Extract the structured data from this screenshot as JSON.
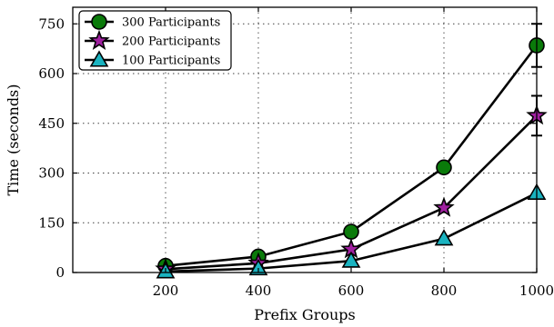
{
  "chart_data": {
    "type": "line",
    "title": "",
    "xlabel": "Prefix Groups",
    "ylabel": "Time (seconds)",
    "x": [
      200,
      400,
      600,
      800,
      1000
    ],
    "xlim": [
      0,
      1000
    ],
    "ylim": [
      0,
      800
    ],
    "xticks": [
      200,
      400,
      600,
      800,
      1000
    ],
    "yticks": [
      0,
      150,
      300,
      450,
      600,
      750
    ],
    "grid": true,
    "legend_position": "top-left",
    "series": [
      {
        "name": "300 Participants",
        "marker": "circle",
        "color": "#0a7a0a",
        "values": [
          20,
          48,
          123,
          317,
          685
        ],
        "error": [
          0,
          0,
          0,
          0,
          65
        ]
      },
      {
        "name": "200 Participants",
        "marker": "star",
        "color": "#a020a0",
        "values": [
          10,
          28,
          70,
          195,
          473
        ],
        "error": [
          0,
          0,
          0,
          0,
          60
        ]
      },
      {
        "name": "100 Participants",
        "marker": "triangle",
        "color": "#1ab3c0",
        "values": [
          3,
          12,
          35,
          102,
          240
        ],
        "error": [
          0,
          0,
          0,
          0,
          0
        ]
      }
    ]
  }
}
